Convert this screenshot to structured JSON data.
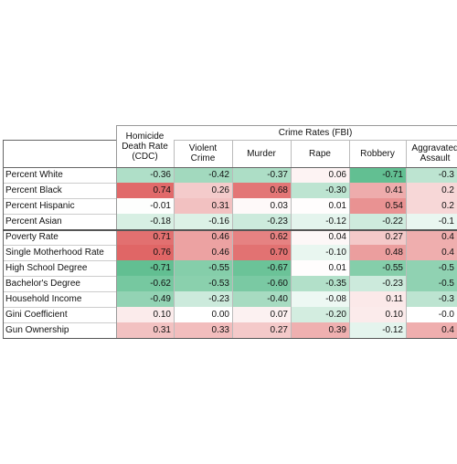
{
  "table": {
    "group_header": "Crime Rates (FBI)",
    "headers": [
      "Homicide Death Rate (CDC)",
      "Violent Crime",
      "Murder",
      "Rape",
      "Robbery",
      "Aggravated Assault"
    ],
    "rows": [
      {
        "label": "Percent White",
        "cells": [
          "-0.36",
          "-0.42",
          "-0.37",
          "0.06",
          "-0.71",
          "-0.3"
        ]
      },
      {
        "label": "Percent Black",
        "cells": [
          "0.74",
          "0.26",
          "0.68",
          "-0.30",
          "0.41",
          "0.2"
        ]
      },
      {
        "label": "Percent Hispanic",
        "cells": [
          "-0.01",
          "0.31",
          "0.03",
          "0.01",
          "0.54",
          "0.2"
        ]
      },
      {
        "label": "Percent Asian",
        "cells": [
          "-0.18",
          "-0.16",
          "-0.23",
          "-0.12",
          "-0.22",
          "-0.1"
        ]
      },
      {
        "label": "Poverty Rate",
        "cells": [
          "0.71",
          "0.46",
          "0.62",
          "0.04",
          "0.27",
          "0.4"
        ]
      },
      {
        "label": "Single Motherhood Rate",
        "cells": [
          "0.76",
          "0.46",
          "0.70",
          "-0.10",
          "0.48",
          "0.4"
        ]
      },
      {
        "label": "High School Degree",
        "cells": [
          "-0.71",
          "-0.55",
          "-0.67",
          "0.01",
          "-0.55",
          "-0.5"
        ]
      },
      {
        "label": "Bachelor's Degree",
        "cells": [
          "-0.62",
          "-0.53",
          "-0.60",
          "-0.35",
          "-0.23",
          "-0.5"
        ]
      },
      {
        "label": "Household Income",
        "cells": [
          "-0.49",
          "-0.23",
          "-0.40",
          "-0.08",
          "0.11",
          "-0.3"
        ]
      },
      {
        "label": "Gini Coefficient",
        "cells": [
          "0.10",
          "0.00",
          "0.07",
          "-0.20",
          "0.10",
          "-0.0"
        ]
      },
      {
        "label": "Gun Ownership",
        "cells": [
          "0.31",
          "0.33",
          "0.27",
          "0.39",
          "-0.12",
          "0.4"
        ]
      }
    ]
  }
}
